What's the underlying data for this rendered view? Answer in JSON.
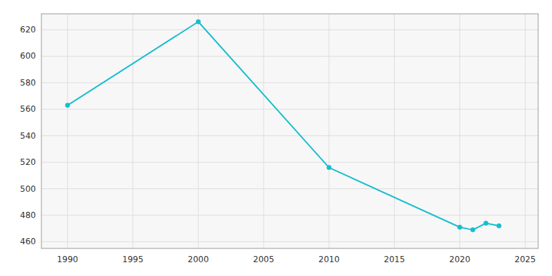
{
  "chart_data": {
    "type": "line",
    "x": [
      1990,
      2000,
      2010,
      2020,
      2021,
      2022,
      2023
    ],
    "values": [
      563,
      626,
      516,
      471,
      469,
      474,
      472
    ],
    "color": "#17becf",
    "marker": "circle",
    "xlim": [
      1988,
      2026
    ],
    "ylim": [
      455,
      632
    ],
    "xticks": [
      1990,
      1995,
      2000,
      2005,
      2010,
      2015,
      2020,
      2025
    ],
    "yticks": [
      460,
      480,
      500,
      520,
      540,
      560,
      580,
      600,
      620
    ],
    "grid": true
  }
}
